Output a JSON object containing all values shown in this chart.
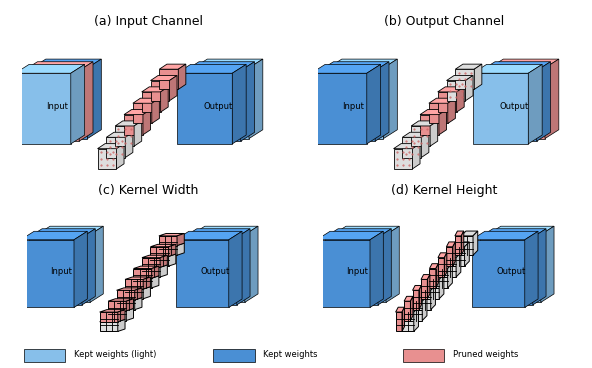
{
  "labels": [
    "(a) Input Channel",
    "(b) Output Channel",
    "(c) Kernel Width",
    "(d) Kernel Height"
  ],
  "BLUE_LIGHT": "#87bfea",
  "BLUE_MID": "#4a8fd4",
  "BLUE_DARK": "#2060b0",
  "PINK": "#e89090",
  "GRAY": "#c8c8c8",
  "GRAY_LIGHT": "#dedede",
  "WHITE": "#ffffff",
  "BG": "#ffffff",
  "legend_colors": [
    "#87bfea",
    "#4a8fd4",
    "#e89090"
  ],
  "legend_labels": [
    "Kept weights",
    "Kept weights",
    "Pruned weights"
  ]
}
